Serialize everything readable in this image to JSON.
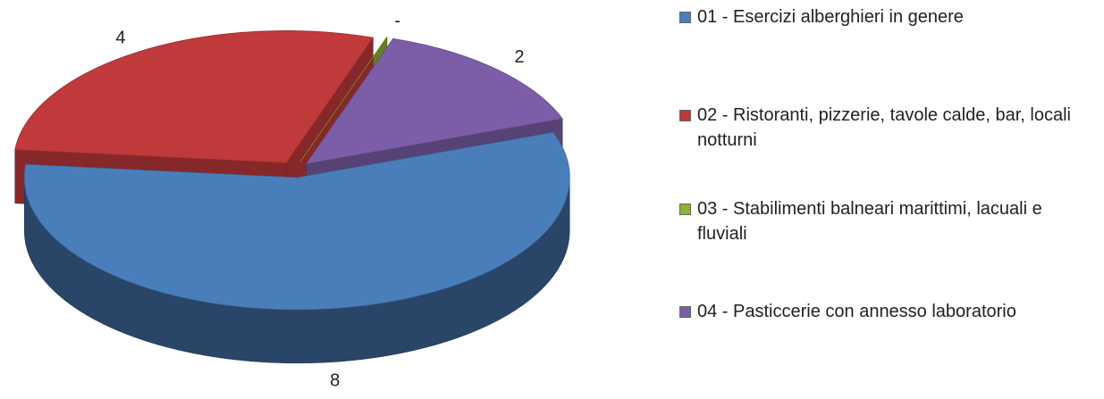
{
  "chart_data": {
    "type": "pie",
    "categories": [
      "01 - Esercizi alberghieri in genere",
      "02 - Ristoranti, pizzerie, tavole calde, bar, locali notturni",
      "03 - Stabilimenti balneari marittimi, lacuali e fluviali",
      "04 - Pasticcerie con annesso laboratorio"
    ],
    "values": [
      8,
      4,
      0,
      2
    ],
    "value_labels": [
      "8",
      "4",
      "-",
      "2"
    ],
    "colors": [
      "#4a7ebb",
      "#c0393b",
      "#8fb42e",
      "#7b5ea7"
    ],
    "legend": "right"
  }
}
